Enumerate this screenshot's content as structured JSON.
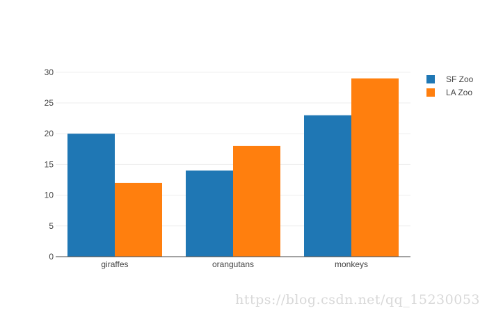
{
  "chart_data": {
    "type": "bar",
    "barmode": "group",
    "categories": [
      "giraffes",
      "orangutans",
      "monkeys"
    ],
    "series": [
      {
        "name": "SF Zoo",
        "values": [
          20,
          14,
          23
        ],
        "color": "#1f77b4"
      },
      {
        "name": "LA Zoo",
        "values": [
          12,
          18,
          29
        ],
        "color": "#ff7f0e"
      }
    ],
    "title": "",
    "xlabel": "",
    "ylabel": "",
    "ylim": [
      0,
      31
    ],
    "yticks": [
      0,
      5,
      10,
      15,
      20,
      25,
      30
    ],
    "grid": true,
    "legend_position": "top-right"
  },
  "watermark": "https://blog.csdn.net/qq_15230053"
}
